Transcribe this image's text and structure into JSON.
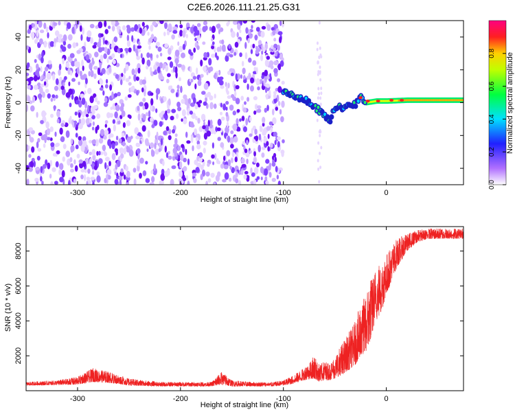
{
  "title": "C2E6.2026.111.21.25.G31",
  "chart_data": [
    {
      "type": "heatmap",
      "name": "spectrogram",
      "xlabel": "Height of straight line (km)",
      "ylabel": "Frequency (Hz)",
      "xlim": [
        -350,
        75
      ],
      "ylim": [
        -50,
        50
      ],
      "xticks": [
        -300,
        -200,
        -100,
        0
      ],
      "yticks": [
        -40,
        -20,
        0,
        20,
        40
      ],
      "noise_region_x": [
        -350,
        -100
      ],
      "signal_track": {
        "x": [
          -100,
          -90,
          -80,
          -70,
          -60,
          -55,
          -50,
          -40,
          -30,
          -25,
          -20,
          -10,
          0,
          20,
          40,
          60,
          75
        ],
        "freq": [
          6,
          4,
          2,
          -2,
          -8,
          -11,
          -3,
          -3,
          -1,
          3,
          0,
          1,
          1,
          1.5,
          1.5,
          1.5,
          1.5
        ]
      },
      "colorbar": {
        "label": "Normalized spectral amplitude",
        "range": [
          0.0,
          1.0
        ],
        "ticks": [
          0.0,
          0.2,
          0.4,
          0.6,
          0.8
        ],
        "tick_labels": [
          "0.0",
          "0.2",
          "0.4",
          "0.6",
          "0.8"
        ]
      }
    },
    {
      "type": "line",
      "name": "snr",
      "xlabel": "Height of straight line (km)",
      "ylabel": "SNR (10 * v/v)",
      "xlim": [
        -350,
        75
      ],
      "ylim": [
        0,
        9400
      ],
      "xticks": [
        -300,
        -200,
        -100,
        0
      ],
      "yticks": [
        2000,
        4000,
        6000,
        8000
      ],
      "color": "#ee2222",
      "envelope": {
        "x": [
          -350,
          -320,
          -300,
          -285,
          -270,
          -250,
          -220,
          -200,
          -170,
          -160,
          -150,
          -130,
          -110,
          -100,
          -90,
          -80,
          -70,
          -65,
          -60,
          -55,
          -50,
          -40,
          -30,
          -25,
          -20,
          -15,
          -10,
          -5,
          0,
          10,
          20,
          30,
          40,
          50,
          60,
          75
        ],
        "low": [
          300,
          320,
          350,
          500,
          450,
          300,
          250,
          250,
          250,
          350,
          250,
          250,
          250,
          300,
          400,
          600,
          700,
          500,
          600,
          600,
          700,
          1000,
          1500,
          2000,
          2200,
          3000,
          4000,
          4500,
          5500,
          7000,
          8000,
          8500,
          8700,
          8700,
          8700,
          8700
        ],
        "high": [
          500,
          600,
          800,
          1300,
          1100,
          700,
          500,
          500,
          500,
          1100,
          600,
          500,
          500,
          600,
          900,
          1300,
          2000,
          1500,
          1700,
          1600,
          2000,
          3000,
          4000,
          5000,
          5500,
          6500,
          7000,
          7500,
          7800,
          8700,
          9000,
          9200,
          9300,
          9300,
          9300,
          9300
        ]
      }
    }
  ]
}
